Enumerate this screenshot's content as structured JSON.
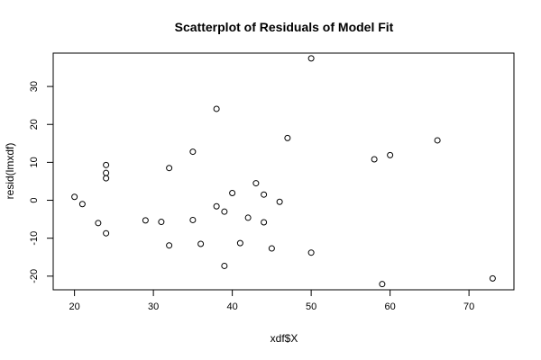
{
  "chart_data": {
    "type": "scatter",
    "title": "Scatterplot of Residuals of Model Fit",
    "xlabel": "xdf$X",
    "ylabel": "resid(lmxdf)",
    "xlim": [
      17.3,
      75.7
    ],
    "ylim": [
      -23.6,
      38.8
    ],
    "x_ticks": [
      20,
      30,
      40,
      50,
      60,
      70
    ],
    "y_ticks": [
      -20,
      -10,
      0,
      10,
      20,
      30
    ],
    "grid": false,
    "legend": "none",
    "marker": "open-circle",
    "points": [
      {
        "x": 20,
        "y": 0.9
      },
      {
        "x": 21,
        "y": -1.0
      },
      {
        "x": 23,
        "y": -6.0
      },
      {
        "x": 24,
        "y": 9.3
      },
      {
        "x": 24,
        "y": 7.2
      },
      {
        "x": 24,
        "y": 5.8
      },
      {
        "x": 24,
        "y": -8.7
      },
      {
        "x": 29,
        "y": -5.3
      },
      {
        "x": 31,
        "y": -5.7
      },
      {
        "x": 32,
        "y": 8.5
      },
      {
        "x": 32,
        "y": -11.9
      },
      {
        "x": 35,
        "y": 12.8
      },
      {
        "x": 35,
        "y": -5.2
      },
      {
        "x": 36,
        "y": -11.5
      },
      {
        "x": 38,
        "y": 24.1
      },
      {
        "x": 38,
        "y": -1.6
      },
      {
        "x": 39,
        "y": -3.0
      },
      {
        "x": 39,
        "y": -17.3
      },
      {
        "x": 40,
        "y": 1.9
      },
      {
        "x": 41,
        "y": -11.3
      },
      {
        "x": 42,
        "y": -4.6
      },
      {
        "x": 43,
        "y": 4.5
      },
      {
        "x": 44,
        "y": 1.5
      },
      {
        "x": 44,
        "y": -5.8
      },
      {
        "x": 45,
        "y": -12.7
      },
      {
        "x": 46,
        "y": -0.4
      },
      {
        "x": 47,
        "y": 16.4
      },
      {
        "x": 50,
        "y": 37.4
      },
      {
        "x": 50,
        "y": -13.8
      },
      {
        "x": 58,
        "y": 10.8
      },
      {
        "x": 59,
        "y": -22.1
      },
      {
        "x": 60,
        "y": 11.9
      },
      {
        "x": 66,
        "y": 15.8
      },
      {
        "x": 73,
        "y": -20.6
      }
    ]
  }
}
